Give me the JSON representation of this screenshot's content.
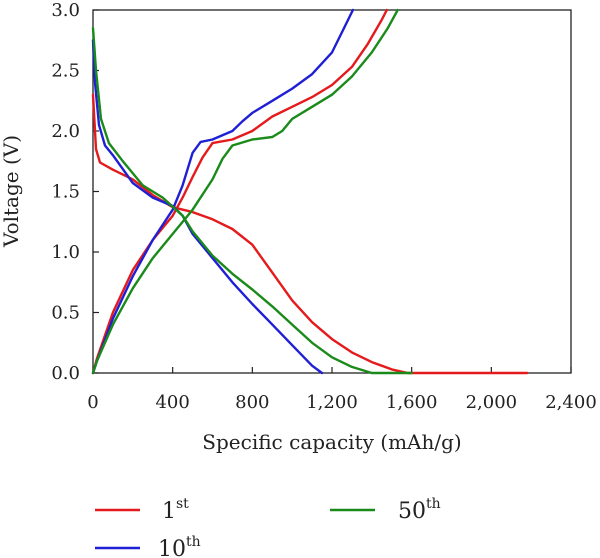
{
  "chart_data": {
    "type": "line",
    "xlabel": "Specific capacity (mAh/g)",
    "ylabel": "Voltage (V)",
    "xlim": [
      0,
      2400
    ],
    "ylim": [
      0,
      3.0
    ],
    "x_ticks": [
      0,
      400,
      800,
      1200,
      1600,
      2000,
      2400
    ],
    "x_tick_labels": [
      "0",
      "400",
      "800",
      "1,200",
      "1,600",
      "2,000",
      "2,400"
    ],
    "y_ticks": [
      0,
      0.5,
      1.0,
      1.5,
      2.0,
      2.5,
      3.0
    ],
    "y_tick_labels": [
      "0.0",
      "0.5",
      "1.0",
      "1.5",
      "2.0",
      "2.5",
      "3.0"
    ],
    "grid": false,
    "legend_position": "below",
    "series": [
      {
        "name": "1st",
        "legend_base": "1",
        "legend_sup": "st",
        "color": "#e41a1c",
        "discharge": [
          [
            0,
            2.3
          ],
          [
            15,
            1.85
          ],
          [
            35,
            1.74
          ],
          [
            100,
            1.68
          ],
          [
            200,
            1.6
          ],
          [
            300,
            1.47
          ],
          [
            400,
            1.37
          ],
          [
            500,
            1.33
          ],
          [
            600,
            1.27
          ],
          [
            700,
            1.19
          ],
          [
            800,
            1.06
          ],
          [
            900,
            0.83
          ],
          [
            1000,
            0.6
          ],
          [
            1100,
            0.42
          ],
          [
            1200,
            0.28
          ],
          [
            1300,
            0.17
          ],
          [
            1400,
            0.09
          ],
          [
            1500,
            0.03
          ],
          [
            1580,
            0.0
          ],
          [
            2180,
            0.0
          ]
        ],
        "charge": [
          [
            0,
            0.0
          ],
          [
            20,
            0.12
          ],
          [
            100,
            0.5
          ],
          [
            200,
            0.85
          ],
          [
            300,
            1.1
          ],
          [
            400,
            1.3
          ],
          [
            450,
            1.45
          ],
          [
            500,
            1.62
          ],
          [
            550,
            1.78
          ],
          [
            600,
            1.9
          ],
          [
            700,
            1.93
          ],
          [
            800,
            2.0
          ],
          [
            900,
            2.12
          ],
          [
            1000,
            2.2
          ],
          [
            1100,
            2.28
          ],
          [
            1200,
            2.38
          ],
          [
            1300,
            2.53
          ],
          [
            1380,
            2.72
          ],
          [
            1450,
            2.92
          ],
          [
            1475,
            3.0
          ]
        ]
      },
      {
        "name": "10th",
        "legend_base": "10",
        "legend_sup": "th",
        "color": "#1f1fd6",
        "discharge": [
          [
            0,
            2.75
          ],
          [
            10,
            2.4
          ],
          [
            30,
            2.05
          ],
          [
            60,
            1.88
          ],
          [
            100,
            1.8
          ],
          [
            200,
            1.57
          ],
          [
            300,
            1.45
          ],
          [
            400,
            1.38
          ],
          [
            450,
            1.3
          ],
          [
            500,
            1.15
          ],
          [
            600,
            0.95
          ],
          [
            700,
            0.75
          ],
          [
            800,
            0.57
          ],
          [
            900,
            0.4
          ],
          [
            1000,
            0.23
          ],
          [
            1100,
            0.06
          ],
          [
            1150,
            0.0
          ]
        ],
        "charge": [
          [
            0,
            0.0
          ],
          [
            20,
            0.1
          ],
          [
            100,
            0.45
          ],
          [
            200,
            0.8
          ],
          [
            300,
            1.1
          ],
          [
            400,
            1.35
          ],
          [
            450,
            1.55
          ],
          [
            500,
            1.82
          ],
          [
            540,
            1.91
          ],
          [
            600,
            1.93
          ],
          [
            700,
            2.0
          ],
          [
            750,
            2.08
          ],
          [
            800,
            2.15
          ],
          [
            900,
            2.25
          ],
          [
            1000,
            2.35
          ],
          [
            1100,
            2.47
          ],
          [
            1200,
            2.65
          ],
          [
            1260,
            2.85
          ],
          [
            1305,
            3.0
          ]
        ]
      },
      {
        "name": "50th",
        "legend_base": "50",
        "legend_sup": "th",
        "color": "#1a8a1a",
        "discharge": [
          [
            0,
            2.85
          ],
          [
            15,
            2.5
          ],
          [
            40,
            2.1
          ],
          [
            80,
            1.9
          ],
          [
            150,
            1.75
          ],
          [
            250,
            1.55
          ],
          [
            350,
            1.45
          ],
          [
            450,
            1.3
          ],
          [
            500,
            1.17
          ],
          [
            600,
            0.97
          ],
          [
            700,
            0.82
          ],
          [
            800,
            0.69
          ],
          [
            900,
            0.55
          ],
          [
            1000,
            0.4
          ],
          [
            1100,
            0.25
          ],
          [
            1200,
            0.13
          ],
          [
            1300,
            0.05
          ],
          [
            1400,
            0.0
          ],
          [
            1600,
            0.0
          ]
        ],
        "charge": [
          [
            0,
            0.0
          ],
          [
            20,
            0.1
          ],
          [
            100,
            0.4
          ],
          [
            200,
            0.7
          ],
          [
            300,
            0.95
          ],
          [
            400,
            1.15
          ],
          [
            500,
            1.35
          ],
          [
            600,
            1.6
          ],
          [
            650,
            1.77
          ],
          [
            700,
            1.88
          ],
          [
            800,
            1.93
          ],
          [
            900,
            1.95
          ],
          [
            950,
            2.0
          ],
          [
            1000,
            2.1
          ],
          [
            1100,
            2.2
          ],
          [
            1200,
            2.3
          ],
          [
            1300,
            2.45
          ],
          [
            1400,
            2.65
          ],
          [
            1480,
            2.85
          ],
          [
            1530,
            3.0
          ]
        ]
      }
    ]
  }
}
